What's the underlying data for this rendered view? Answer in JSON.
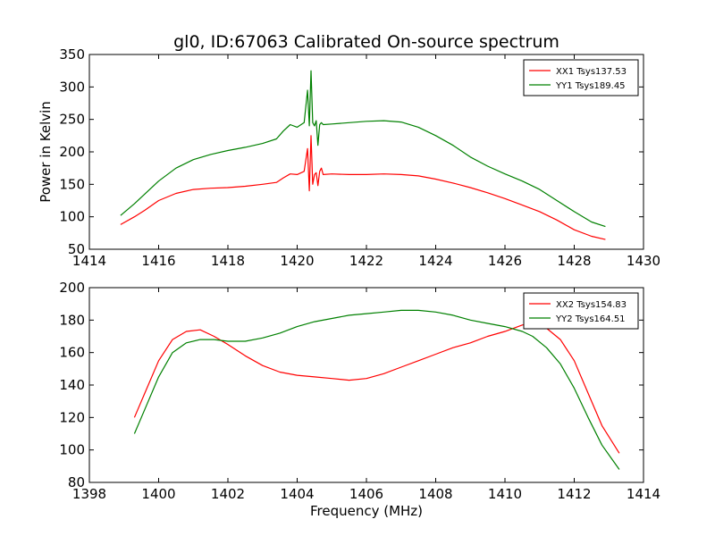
{
  "figure": {
    "title": "gl0, ID:67063 Calibrated On-source spectrum"
  },
  "chart_data": [
    {
      "type": "line",
      "title": "gl0, ID:67063 Calibrated On-source spectrum",
      "xlabel": "",
      "ylabel": "Power in Kelvin",
      "xlim": [
        1414,
        1430
      ],
      "ylim": [
        50,
        350
      ],
      "xticks": [
        1414,
        1416,
        1418,
        1420,
        1422,
        1424,
        1426,
        1428,
        1430
      ],
      "yticks": [
        50,
        100,
        150,
        200,
        250,
        300,
        350
      ],
      "grid": false,
      "legend": "top-right",
      "series": [
        {
          "name": "XX1 Tsys137.53",
          "color": "#ff0000",
          "x": [
            1414.9,
            1415.3,
            1415.6,
            1416.0,
            1416.5,
            1417.0,
            1417.5,
            1418.0,
            1418.5,
            1419.0,
            1419.4,
            1419.6,
            1419.8,
            1420.0,
            1420.2,
            1420.3,
            1420.35,
            1420.4,
            1420.45,
            1420.5,
            1420.55,
            1420.6,
            1420.65,
            1420.7,
            1420.75,
            1421.0,
            1421.5,
            1422.0,
            1422.5,
            1423.0,
            1423.5,
            1424.0,
            1424.5,
            1425.0,
            1425.5,
            1426.0,
            1426.5,
            1427.0,
            1427.5,
            1428.0,
            1428.5,
            1428.9
          ],
          "values": [
            88,
            100,
            110,
            125,
            136,
            142,
            144,
            145,
            147,
            150,
            153,
            160,
            166,
            165,
            170,
            205,
            140,
            225,
            150,
            165,
            168,
            148,
            170,
            175,
            165,
            166,
            165,
            165,
            166,
            165,
            163,
            158,
            152,
            145,
            137,
            128,
            118,
            108,
            95,
            80,
            70,
            65
          ]
        },
        {
          "name": "YY1 Tsys189.45",
          "color": "#008000",
          "x": [
            1414.9,
            1415.3,
            1415.6,
            1416.0,
            1416.5,
            1417.0,
            1417.5,
            1418.0,
            1418.5,
            1419.0,
            1419.4,
            1419.6,
            1419.8,
            1420.0,
            1420.2,
            1420.3,
            1420.35,
            1420.4,
            1420.45,
            1420.5,
            1420.55,
            1420.6,
            1420.65,
            1420.7,
            1420.75,
            1421.0,
            1421.5,
            1422.0,
            1422.5,
            1423.0,
            1423.5,
            1424.0,
            1424.5,
            1425.0,
            1425.5,
            1426.0,
            1426.5,
            1427.0,
            1427.5,
            1428.0,
            1428.5,
            1428.9
          ],
          "values": [
            102,
            120,
            135,
            155,
            175,
            188,
            196,
            202,
            207,
            213,
            220,
            232,
            242,
            238,
            245,
            295,
            240,
            325,
            245,
            240,
            248,
            210,
            242,
            245,
            242,
            243,
            245,
            247,
            248,
            246,
            238,
            225,
            210,
            192,
            178,
            166,
            155,
            142,
            125,
            108,
            92,
            85
          ]
        }
      ]
    },
    {
      "type": "line",
      "title": "",
      "xlabel": "Frequency (MHz)",
      "ylabel": "",
      "xlim": [
        1398,
        1414
      ],
      "ylim": [
        80,
        200
      ],
      "xticks": [
        1398,
        1400,
        1402,
        1404,
        1406,
        1408,
        1410,
        1412,
        1414
      ],
      "yticks": [
        80,
        100,
        120,
        140,
        160,
        180,
        200
      ],
      "grid": false,
      "legend": "top-right",
      "series": [
        {
          "name": "XX2 Tsys154.83",
          "color": "#ff0000",
          "x": [
            1399.3,
            1399.6,
            1400.0,
            1400.4,
            1400.8,
            1401.2,
            1401.6,
            1402.0,
            1402.5,
            1403.0,
            1403.5,
            1404.0,
            1404.5,
            1405.0,
            1405.5,
            1406.0,
            1406.5,
            1407.0,
            1407.5,
            1408.0,
            1408.5,
            1409.0,
            1409.5,
            1410.0,
            1410.5,
            1410.8,
            1411.2,
            1411.6,
            1412.0,
            1412.4,
            1412.8,
            1413.3
          ],
          "values": [
            120,
            135,
            155,
            168,
            173,
            174,
            170,
            165,
            158,
            152,
            148,
            146,
            145,
            144,
            143,
            144,
            147,
            151,
            155,
            159,
            163,
            166,
            170,
            173,
            177,
            178,
            175,
            168,
            155,
            135,
            115,
            98
          ]
        },
        {
          "name": "YY2 Tsys164.51",
          "color": "#008000",
          "x": [
            1399.3,
            1399.6,
            1400.0,
            1400.4,
            1400.8,
            1401.2,
            1401.6,
            1402.0,
            1402.5,
            1403.0,
            1403.5,
            1404.0,
            1404.5,
            1405.0,
            1405.5,
            1406.0,
            1406.5,
            1407.0,
            1407.5,
            1408.0,
            1408.5,
            1409.0,
            1409.5,
            1410.0,
            1410.5,
            1410.8,
            1411.2,
            1411.6,
            1412.0,
            1412.4,
            1412.8,
            1413.3
          ],
          "values": [
            110,
            125,
            145,
            160,
            166,
            168,
            168,
            167,
            167,
            169,
            172,
            176,
            179,
            181,
            183,
            184,
            185,
            186,
            186,
            185,
            183,
            180,
            178,
            176,
            173,
            170,
            163,
            153,
            138,
            120,
            103,
            88
          ]
        }
      ]
    }
  ]
}
